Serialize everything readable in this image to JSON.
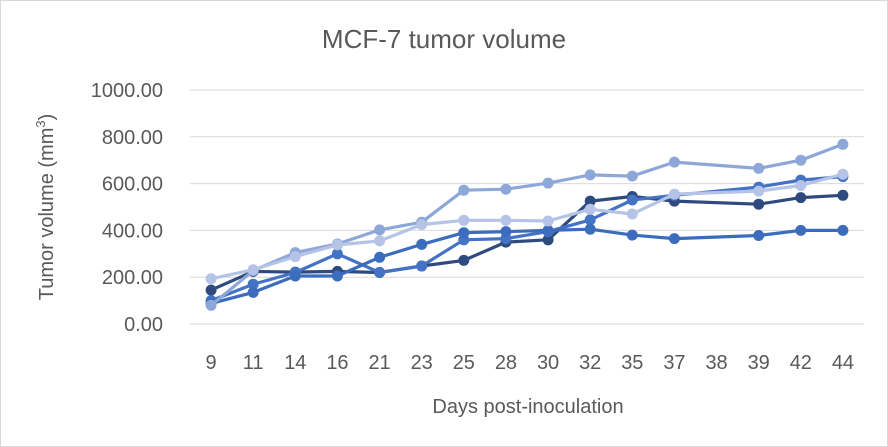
{
  "chart_data": {
    "type": "line",
    "title": "MCF-7 tumor volume",
    "xlabel": "Days post-inoculation",
    "ylabel_main": "Tumor volume (mm",
    "ylabel_sup": "3",
    "ylabel_end": ")",
    "categories": [
      "9",
      "11",
      "14",
      "16",
      "21",
      "23",
      "25",
      "28",
      "30",
      "32",
      "35",
      "37",
      "38",
      "39",
      "42",
      "44"
    ],
    "ylim": [
      0,
      1000
    ],
    "y_ticks": [
      "0.00",
      "200.00",
      "400.00",
      "600.00",
      "800.00",
      "1000.00"
    ],
    "y_tick_values": [
      0,
      200,
      400,
      600,
      800,
      1000
    ],
    "grid": true,
    "legend": "none",
    "series": [
      {
        "color": "#2f4a7e",
        "values": [
          145,
          225,
          222,
          225,
          220,
          248,
          272,
          350,
          360,
          525,
          545,
          525,
          null,
          512,
          540,
          550
        ]
      },
      {
        "color": "#4472c4",
        "values": [
          100,
          170,
          220,
          300,
          220,
          248,
          360,
          365,
          395,
          445,
          530,
          550,
          null,
          585,
          615,
          630
        ]
      },
      {
        "color": "#3c6cbd",
        "values": [
          88,
          135,
          205,
          205,
          285,
          340,
          390,
          395,
          400,
          405,
          380,
          365,
          null,
          378,
          400,
          400
        ]
      },
      {
        "color": "#8ea7d9",
        "values": [
          80,
          228,
          305,
          342,
          402,
          435,
          572,
          576,
          602,
          637,
          632,
          692,
          null,
          665,
          700,
          768
        ]
      },
      {
        "color": "#b4c3e6",
        "values": [
          193,
          232,
          288,
          338,
          355,
          425,
          443,
          443,
          440,
          490,
          470,
          555,
          null,
          568,
          592,
          640
        ]
      }
    ]
  }
}
